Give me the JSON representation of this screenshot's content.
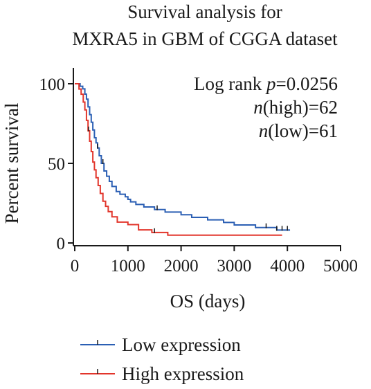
{
  "chart_data": {
    "type": "line",
    "subtype": "kaplan-meier",
    "title_lines": [
      "Survival analysis for",
      "MXRA5 in GBM of CGGA dataset"
    ],
    "xlabel": "OS (days)",
    "ylabel": "Percent survival",
    "xlim": [
      0,
      5000
    ],
    "ylim": [
      0,
      100
    ],
    "xticks": [
      0,
      1000,
      2000,
      3000,
      4000,
      5000
    ],
    "yticks": [
      0,
      50,
      100
    ],
    "grid": false,
    "legend_position": "bottom-left",
    "annotations": {
      "logrank_label": "Log rank ",
      "p_symbol": "p",
      "p_value": "=0.0256",
      "n_symbol": "n",
      "n_high": "(high)=62",
      "n_low": "(low)=61"
    },
    "series": [
      {
        "name": "Low expression",
        "color": "#2b5fb4",
        "points": [
          [
            0,
            100
          ],
          [
            60,
            100
          ],
          [
            100,
            98.4
          ],
          [
            150,
            96.8
          ],
          [
            190,
            93.5
          ],
          [
            220,
            90.3
          ],
          [
            250,
            85.5
          ],
          [
            280,
            80.6
          ],
          [
            310,
            75.8
          ],
          [
            340,
            71
          ],
          [
            370,
            66.1
          ],
          [
            400,
            62.9
          ],
          [
            430,
            59.7
          ],
          [
            460,
            54.8
          ],
          [
            500,
            50
          ],
          [
            550,
            45.2
          ],
          [
            600,
            41.9
          ],
          [
            650,
            38.7
          ],
          [
            700,
            35.5
          ],
          [
            780,
            32.3
          ],
          [
            850,
            30.6
          ],
          [
            950,
            29
          ],
          [
            1000,
            27.4
          ],
          [
            1050,
            25.8
          ],
          [
            1150,
            24.2
          ],
          [
            1300,
            22.6
          ],
          [
            1500,
            21
          ],
          [
            1700,
            19.4
          ],
          [
            2000,
            17.7
          ],
          [
            2200,
            16.1
          ],
          [
            2500,
            14.5
          ],
          [
            2800,
            12.9
          ],
          [
            3000,
            11.3
          ],
          [
            3400,
            9.7
          ],
          [
            3800,
            8.1
          ],
          [
            4050,
            8.1
          ]
        ],
        "censor_x": [
          430,
          530,
          1550,
          3600,
          3800,
          3900,
          4000
        ]
      },
      {
        "name": "High expression",
        "color": "#e2352b",
        "points": [
          [
            0,
            100
          ],
          [
            40,
            100
          ],
          [
            80,
            96.7
          ],
          [
            120,
            93.4
          ],
          [
            160,
            88.5
          ],
          [
            190,
            83.6
          ],
          [
            220,
            77
          ],
          [
            250,
            70.5
          ],
          [
            280,
            63.9
          ],
          [
            310,
            57.4
          ],
          [
            340,
            50.8
          ],
          [
            370,
            45.9
          ],
          [
            400,
            41
          ],
          [
            440,
            36.1
          ],
          [
            480,
            31.1
          ],
          [
            530,
            26.2
          ],
          [
            580,
            23
          ],
          [
            630,
            19.7
          ],
          [
            700,
            16.4
          ],
          [
            800,
            13.1
          ],
          [
            1000,
            11.5
          ],
          [
            1200,
            8.2
          ],
          [
            1450,
            6.6
          ],
          [
            1750,
            4.9
          ],
          [
            2200,
            4.9
          ],
          [
            3900,
            4.9
          ]
        ],
        "censor_x": [
          260,
          1500
        ]
      }
    ]
  }
}
